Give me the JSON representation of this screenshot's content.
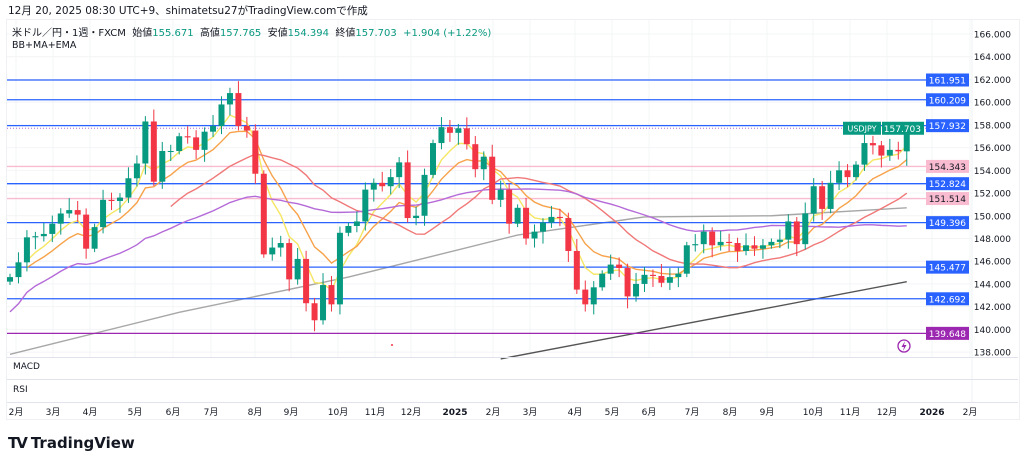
{
  "caption": "12月 20, 2025 08:30 UTC+9、shimatetsu27がTradingView.comで作成",
  "legend": {
    "symbol": "米ドル／円・1週・FXCM",
    "open_label": "始値",
    "open": "155.671",
    "high_label": "高値",
    "high": "157.765",
    "low_label": "安値",
    "low": "154.394",
    "close_label": "終値",
    "close": "157.703",
    "change": "+1.904 (+1.22%)",
    "indicators": "BB+MA+EMA"
  },
  "panes": {
    "macd": "MACD",
    "rsi": "RSI"
  },
  "brand": "TradingView",
  "chart_data": {
    "type": "candlestick",
    "symbol": "USDJPY",
    "interval": "1W",
    "ylim": [
      138,
      166
    ],
    "y_ticks": [
      "166.000",
      "164.000",
      "162.000",
      "160.000",
      "158.000",
      "156.000",
      "154.000",
      "152.000",
      "150.000",
      "148.000",
      "146.000",
      "144.000",
      "142.000",
      "140.000",
      "138.000"
    ],
    "x_ticks": [
      "2月",
      "3月",
      "4月",
      "5月",
      "6月",
      "7月",
      "8月",
      "9月",
      "10月",
      "11月",
      "12月",
      "2025",
      "2月",
      "3月",
      "4月",
      "5月",
      "6月",
      "7月",
      "8月",
      "9月",
      "10月",
      "11月",
      "12月",
      "2026",
      "2月"
    ],
    "first_open": 144.2,
    "closes": [
      144.6,
      145.9,
      148.1,
      148.2,
      148.4,
      149.3,
      150.2,
      150.5,
      150.1,
      147.1,
      149.0,
      151.4,
      151.3,
      151.6,
      153.3,
      154.6,
      158.3,
      153.0,
      155.7,
      155.7,
      157.0,
      156.9,
      155.8,
      157.4,
      157.9,
      159.8,
      160.8,
      157.9,
      157.5,
      153.7,
      146.6,
      147.2,
      147.6,
      144.4,
      146.2,
      142.3,
      140.8,
      143.9,
      142.2,
      148.5,
      149.1,
      149.5,
      152.3,
      152.9,
      152.6,
      153.4,
      154.7,
      149.8,
      150.0,
      153.6,
      156.4,
      157.8,
      157.3,
      157.7,
      156.3,
      154.1,
      155.2,
      151.4,
      152.3,
      149.3,
      150.7,
      148.0,
      148.6,
      149.4,
      149.9,
      149.8,
      146.9,
      143.5,
      142.2,
      143.7,
      144.9,
      145.7,
      145.4,
      142.9,
      144.0,
      144.8,
      144.7,
      144.1,
      144.6,
      144.9,
      147.4,
      147.5,
      148.6,
      147.4,
      147.7,
      147.6,
      146.9,
      147.4,
      147.1,
      147.4,
      147.7,
      147.9,
      149.5,
      147.5,
      150.2,
      152.6,
      150.6,
      152.9,
      154.0,
      153.4,
      154.5,
      156.4,
      156.2,
      155.3,
      155.8,
      155.671,
      157.703
    ],
    "last_candle": {
      "open": 155.671,
      "high": 157.765,
      "low": 154.394,
      "close": 157.703
    },
    "moving_averages": [
      {
        "name": "EMA 5",
        "color": "#f5e663",
        "period": 5,
        "kind": "ema"
      },
      {
        "name": "EMA 10",
        "color": "#f7a24a",
        "period": 10,
        "kind": "ema"
      },
      {
        "name": "SMA 20",
        "color": "#f07878",
        "period": 20,
        "kind": "sma"
      },
      {
        "name": "SMA 52",
        "color": "#b46ad8",
        "period": 52,
        "kind": "sma"
      }
    ],
    "long_ma": {
      "color": "#a7a7a7",
      "points": [
        [
          0,
          137.8
        ],
        [
          20,
          141.5
        ],
        [
          40,
          144.6
        ],
        [
          60,
          148.3
        ],
        [
          75,
          149.9
        ],
        [
          90,
          150.0
        ],
        [
          106,
          150.7
        ]
      ]
    },
    "trendline": {
      "color": "#555555",
      "points": [
        [
          58,
          137.4
        ],
        [
          106,
          144.2
        ]
      ]
    },
    "levels": [
      {
        "price": "161.951",
        "color": "#2962ff"
      },
      {
        "price": "160.209",
        "color": "#2962ff"
      },
      {
        "price": "157.932",
        "color": "#2962ff"
      },
      {
        "price": "154.343",
        "color": "#f8bbd0",
        "text": "#131722"
      },
      {
        "price": "152.824",
        "color": "#2962ff"
      },
      {
        "price": "151.514",
        "color": "#f8bbd0",
        "text": "#131722"
      },
      {
        "price": "149.396",
        "color": "#2962ff"
      },
      {
        "price": "145.477",
        "color": "#2962ff"
      },
      {
        "price": "142.692",
        "color": "#2962ff"
      },
      {
        "price": "139.648",
        "color": "#9c27b0"
      }
    ],
    "current": {
      "label": "USDJPY",
      "price": "157.703",
      "color": "#089981"
    },
    "up_color": "#089981",
    "down_color": "#f23645"
  }
}
